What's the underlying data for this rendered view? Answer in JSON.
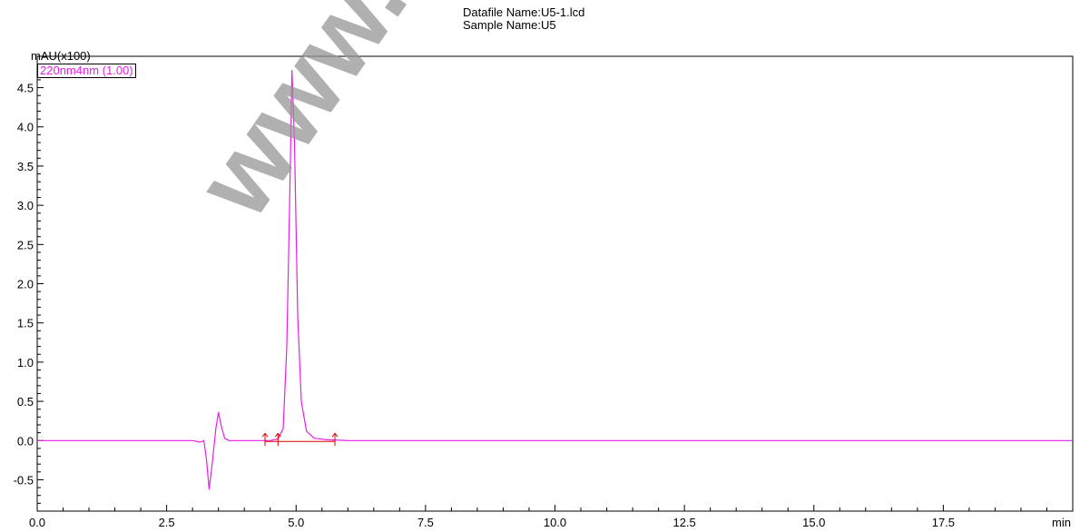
{
  "header": {
    "datafile": "Datafile Name:U5-1.lcd",
    "sample": "Sample Name:U5"
  },
  "watermark": "www.apexb",
  "chart_data": {
    "type": "line",
    "ylabel": "mAU(x100)",
    "xlabel": "min",
    "xlim": [
      0.0,
      20.0
    ],
    "ylim": [
      -0.9,
      4.9
    ],
    "x_ticks": [
      "0.0",
      "2.5",
      "5.0",
      "7.5",
      "10.0",
      "12.5",
      "15.0",
      "17.5"
    ],
    "y_ticks": [
      "-0.5",
      "0.0",
      "0.5",
      "1.0",
      "1.5",
      "2.0",
      "2.5",
      "3.0",
      "3.5",
      "4.0",
      "4.5"
    ],
    "grid": true,
    "legend": "top-left",
    "series": [
      {
        "name": "220nm4nm (1.00)",
        "color": "#e81ee8",
        "x": [
          0.0,
          3.0,
          3.15,
          3.22,
          3.27,
          3.32,
          3.38,
          3.45,
          3.5,
          3.55,
          3.62,
          3.7,
          4.0,
          4.5,
          4.65,
          4.75,
          4.82,
          4.88,
          4.92,
          4.97,
          5.03,
          5.1,
          5.2,
          5.35,
          5.6,
          6.0,
          20.0
        ],
        "y": [
          0.0,
          0.0,
          -0.02,
          0.0,
          -0.25,
          -0.62,
          -0.3,
          0.15,
          0.36,
          0.2,
          0.03,
          0.0,
          0.0,
          0.0,
          0.02,
          0.15,
          1.2,
          3.2,
          4.72,
          3.8,
          1.6,
          0.5,
          0.12,
          0.03,
          0.01,
          0.0,
          0.0
        ]
      }
    ],
    "integration": {
      "color": "#dd0000",
      "baseline": {
        "x": [
          4.4,
          5.75
        ],
        "y": [
          0.0,
          0.0
        ]
      },
      "markers": [
        4.4,
        4.65,
        5.75
      ]
    }
  }
}
